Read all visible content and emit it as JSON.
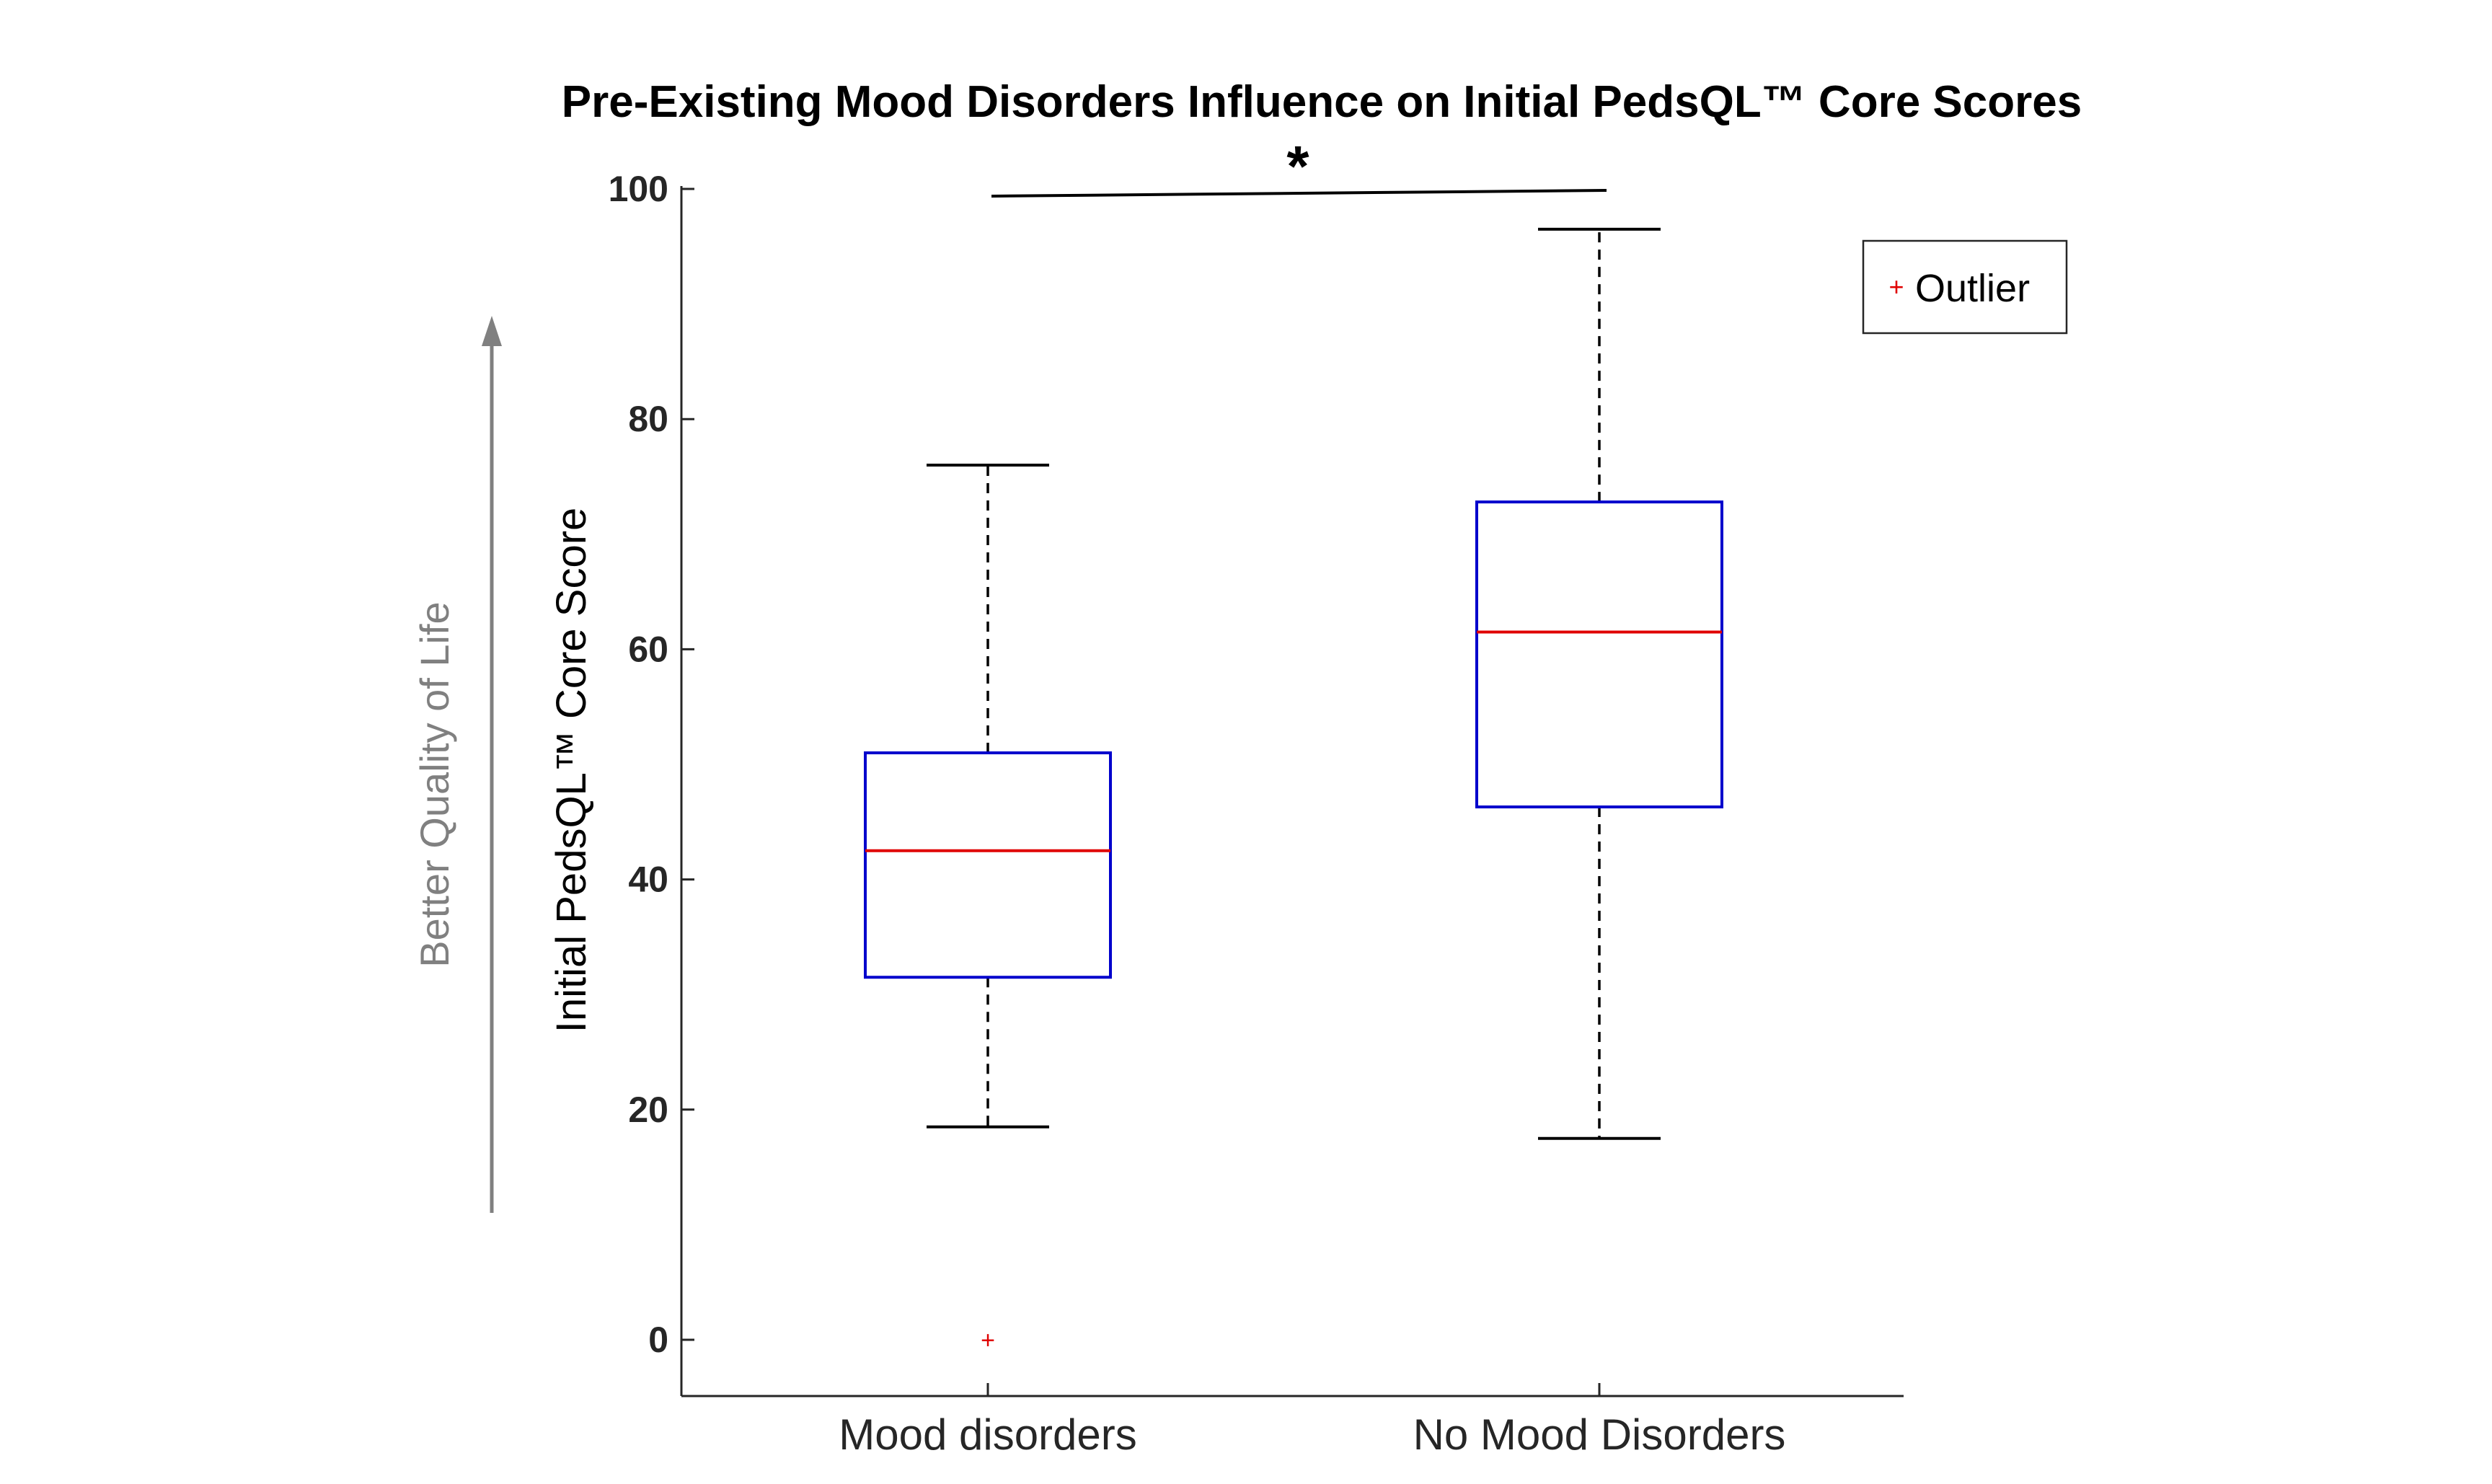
{
  "chart_data": {
    "type": "box",
    "title": "Pre-Existing Mood Disorders Influence on Initial PedsQL™ Core Scores",
    "ylabel": "Initial PedsQL™ Core Score",
    "side_annotation": "Better Quality of Life",
    "significance_marker": "*",
    "ylim": [
      -5,
      105
    ],
    "yticks": [
      0,
      20,
      40,
      60,
      80,
      100
    ],
    "categories": [
      "Mood disorders",
      "No Mood Disorders"
    ],
    "boxes": [
      {
        "category": "Mood disorders",
        "whisker_low": 18.5,
        "q1": 31.5,
        "median": 42.5,
        "q3": 51,
        "whisker_high": 76,
        "outliers": [
          0
        ]
      },
      {
        "category": "No Mood Disorders",
        "whisker_low": 17.5,
        "q1": 46.3,
        "median": 61.5,
        "q3": 72.8,
        "whisker_high": 96.5,
        "outliers": []
      }
    ],
    "legend": {
      "entries": [
        "Outlier"
      ],
      "position": "top-right"
    },
    "colors": {
      "box": "#0000cc",
      "median": "#e00000",
      "outlier": "#e00000",
      "whisker": "#000000",
      "annotation": "#808080"
    },
    "grid": false
  }
}
